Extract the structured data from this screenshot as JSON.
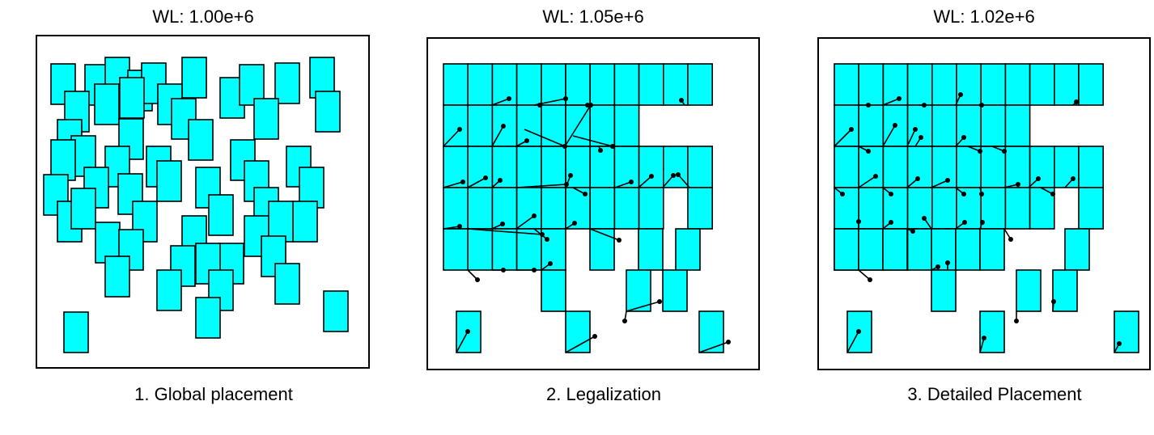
{
  "panels": [
    {
      "wl_label": "WL: 1.00e+6",
      "caption": "1. Global placement"
    },
    {
      "wl_label": "WL: 1.05e+6",
      "caption": "2. Legalization"
    },
    {
      "wl_label": "WL: 1.02e+6",
      "caption": "3. Detailed Placement"
    }
  ],
  "colors": {
    "cell_fill": "#00ffff",
    "stroke": "#000000",
    "background": "#ffffff"
  }
}
